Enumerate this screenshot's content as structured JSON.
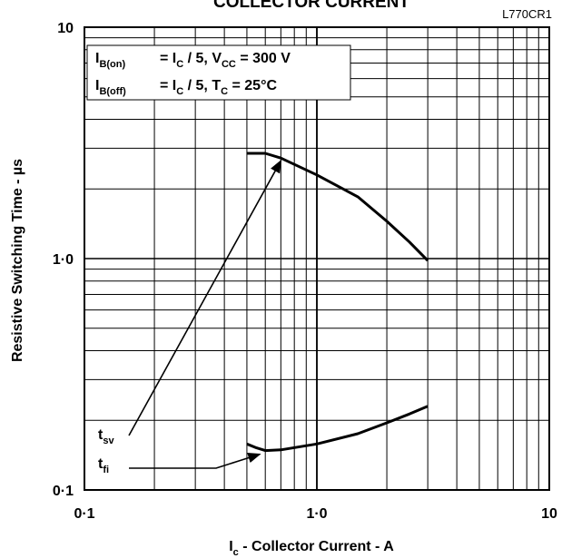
{
  "title_partial": "COLLECTOR CURRENT",
  "figure_code": "L770CR1",
  "conditions": {
    "line1": {
      "lhs_main": "I",
      "lhs_sub": "B(on)",
      "eq": "= I",
      "eq_sub": "C",
      "rest": " / 5,  V",
      "rest_sub": "CC",
      "tail": " = 300 V"
    },
    "line2": {
      "lhs_main": "I",
      "lhs_sub": "B(off)",
      "eq": "= I",
      "eq_sub": "C",
      "rest": " / 5,  T",
      "rest_sub": "C",
      "tail": "  =  25°C"
    }
  },
  "chart_data": {
    "type": "line",
    "x_scale": "log",
    "y_scale": "log",
    "xlim": [
      0.1,
      10
    ],
    "ylim": [
      0.1,
      10
    ],
    "x_ticks": [
      "0·1",
      "1·0",
      "10"
    ],
    "y_ticks": [
      "0·1",
      "1·0",
      "10"
    ],
    "xlabel": {
      "main": "I",
      "sub": "c",
      "rest": " - Collector Current - A"
    },
    "ylabel": "Resistive Switching Time - µs",
    "grid": true,
    "series": [
      {
        "name": "t_sv",
        "label_main": "t",
        "label_sub": "sv",
        "points": [
          [
            0.5,
            2.85
          ],
          [
            0.6,
            2.85
          ],
          [
            0.7,
            2.72
          ],
          [
            1.0,
            2.3
          ],
          [
            1.5,
            1.85
          ],
          [
            2.0,
            1.45
          ],
          [
            2.5,
            1.18
          ],
          [
            3.0,
            0.98
          ]
        ]
      },
      {
        "name": "t_fi",
        "label_main": "t",
        "label_sub": "fi",
        "points": [
          [
            0.5,
            0.158
          ],
          [
            0.55,
            0.152
          ],
          [
            0.6,
            0.148
          ],
          [
            0.7,
            0.149
          ],
          [
            1.0,
            0.158
          ],
          [
            1.5,
            0.175
          ],
          [
            2.0,
            0.195
          ],
          [
            2.5,
            0.213
          ],
          [
            3.0,
            0.23
          ]
        ]
      }
    ]
  }
}
